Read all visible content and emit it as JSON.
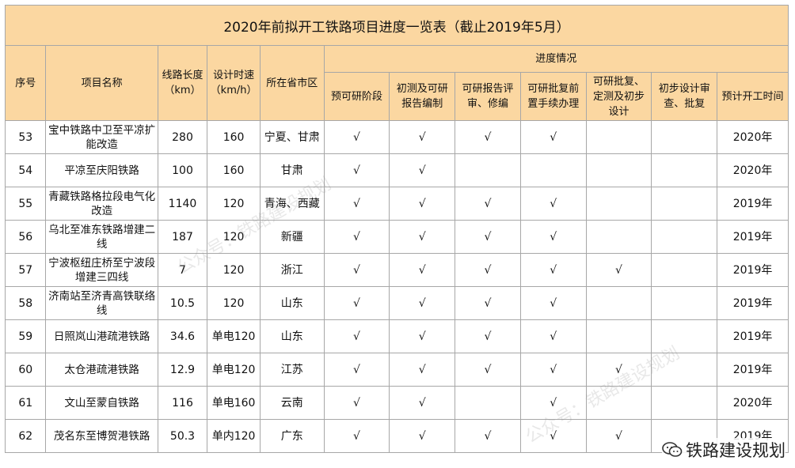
{
  "title": "2020年前拟开工铁路项目进度一览表（截止2019年5月）",
  "headers": {
    "seq": "序号",
    "name": "项目名称",
    "length": "线路长度（km）",
    "speed": "设计时速（km/h）",
    "province": "所在省市区",
    "progress": "进度情况",
    "stages": [
      "预可研阶段",
      "初测及可研报告编制",
      "可研报告评审、修编",
      "可研批复前置手续办理",
      "可研批复、定测及初步设计",
      "初步设计审查、批复",
      "预计开工时间"
    ]
  },
  "mark": "√",
  "rows": [
    {
      "seq": "53",
      "name": "宝中铁路中卫至平凉扩能改造",
      "length": "280",
      "speed": "160",
      "province": "宁夏、甘肃",
      "stages": [
        true,
        true,
        true,
        true,
        false,
        false
      ],
      "start": "2020年"
    },
    {
      "seq": "54",
      "name": "平凉至庆阳铁路",
      "length": "100",
      "speed": "160",
      "province": "甘肃",
      "stages": [
        true,
        true,
        false,
        false,
        false,
        false
      ],
      "start": "2020年"
    },
    {
      "seq": "55",
      "name": "青藏铁路格拉段电气化改造",
      "length": "1140",
      "speed": "120",
      "province": "青海、西藏",
      "stages": [
        true,
        true,
        true,
        true,
        false,
        false
      ],
      "start": "2019年"
    },
    {
      "seq": "56",
      "name": "乌北至准东铁路增建二线",
      "length": "187",
      "speed": "120",
      "province": "新疆",
      "stages": [
        true,
        true,
        true,
        true,
        false,
        false
      ],
      "start": "2019年"
    },
    {
      "seq": "57",
      "name": "宁波枢纽庄桥至宁波段增建三四线",
      "length": "7",
      "speed": "120",
      "province": "浙江",
      "stages": [
        true,
        true,
        true,
        true,
        true,
        false
      ],
      "start": "2019年"
    },
    {
      "seq": "58",
      "name": "济南站至济青高铁联络线",
      "length": "10.5",
      "speed": "120",
      "province": "山东",
      "stages": [
        true,
        true,
        true,
        true,
        false,
        false
      ],
      "start": "2019年"
    },
    {
      "seq": "59",
      "name": "日照岚山港疏港铁路",
      "length": "34.6",
      "speed": "单电120",
      "province": "山东",
      "stages": [
        true,
        true,
        true,
        true,
        false,
        false
      ],
      "start": "2019年"
    },
    {
      "seq": "60",
      "name": "太仓港疏港铁路",
      "length": "12.9",
      "speed": "单电120",
      "province": "江苏",
      "stages": [
        true,
        true,
        true,
        true,
        true,
        false
      ],
      "start": "2019年"
    },
    {
      "seq": "61",
      "name": "文山至蒙自铁路",
      "length": "116",
      "speed": "单电160",
      "province": "云南",
      "stages": [
        true,
        true,
        false,
        true,
        false,
        false
      ],
      "start": "2020年"
    },
    {
      "seq": "62",
      "name": "茂名东至博贺港铁路",
      "length": "50.3",
      "speed": "单内120",
      "province": "广东",
      "stages": [
        true,
        true,
        true,
        true,
        true,
        false
      ],
      "start": "2019年"
    }
  ],
  "watermark": {
    "text": "公众号：铁路建设规划",
    "brand": "铁路建设规划",
    "icon": "wechat-icon"
  }
}
